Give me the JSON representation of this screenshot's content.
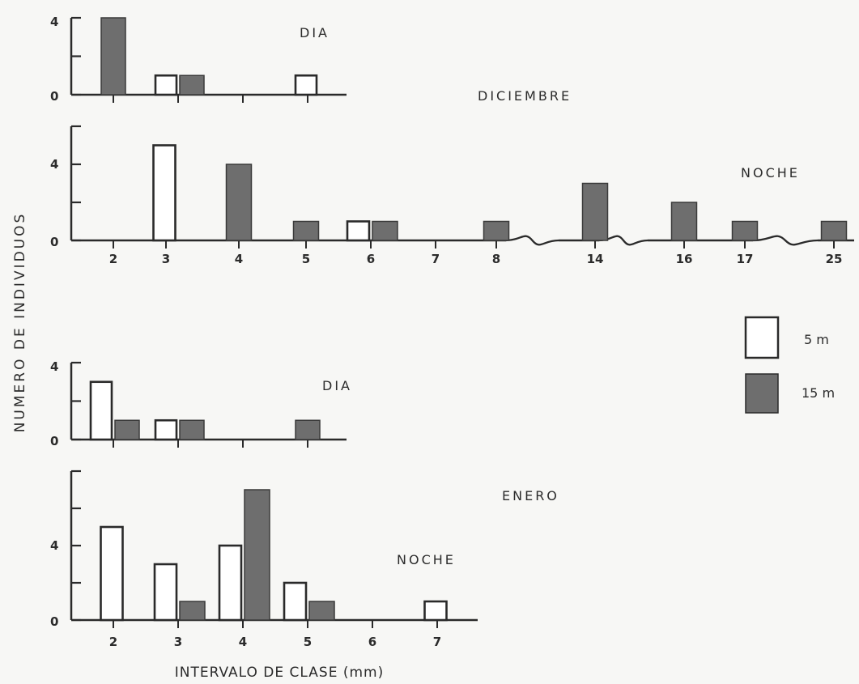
{
  "figure": {
    "ylabel": "NUMERO  DE  INDIVIDUOS",
    "xlabel": "INTERVALO DE CLASE (mm)",
    "month_labels": [
      "DICIEMBRE",
      "ENERO"
    ]
  },
  "legend": [
    {
      "label": "5 m",
      "style": "open",
      "color": "#ffffff"
    },
    {
      "label": "15 m",
      "style": "filled",
      "color": "#6e6e6e"
    }
  ],
  "chart_data": [
    {
      "type": "bar",
      "month": "DICIEMBRE",
      "title": "DIA",
      "categories": [
        "2",
        "3",
        "4",
        "5"
      ],
      "show_tick_labels": false,
      "ylim": [
        0,
        4
      ],
      "yticks": [
        "0",
        "",
        "4"
      ],
      "series": [
        {
          "name": "5 m",
          "values": [
            0,
            1,
            0,
            1
          ]
        },
        {
          "name": "15 m",
          "values": [
            4,
            1,
            0,
            0
          ]
        }
      ]
    },
    {
      "type": "bar",
      "month": "DICIEMBRE",
      "title": "NOCHE",
      "categories": [
        "2",
        "3",
        "4",
        "5",
        "6",
        "7",
        "8",
        "14",
        "16",
        "17",
        "25"
      ],
      "axis_breaks": [
        "8-14",
        "14-16",
        "17-25"
      ],
      "ylim": [
        0,
        6
      ],
      "yticks": [
        "0",
        "",
        "4",
        ""
      ],
      "series": [
        {
          "name": "5 m",
          "values": [
            0,
            5,
            0,
            0,
            1,
            0,
            0,
            0,
            0,
            0,
            0
          ]
        },
        {
          "name": "15 m",
          "values": [
            0,
            0,
            4,
            1,
            1,
            0,
            1,
            3,
            2,
            1,
            1
          ]
        }
      ]
    },
    {
      "type": "bar",
      "month": "ENERO",
      "title": "DIA",
      "categories": [
        "2",
        "3",
        "4",
        "5"
      ],
      "show_tick_labels": false,
      "ylim": [
        0,
        4
      ],
      "yticks": [
        "0",
        "",
        "4"
      ],
      "series": [
        {
          "name": "5 m",
          "values": [
            3,
            1,
            0,
            0
          ]
        },
        {
          "name": "15 m",
          "values": [
            1,
            1,
            0,
            1
          ]
        }
      ]
    },
    {
      "type": "bar",
      "month": "ENERO",
      "title": "NOCHE",
      "categories": [
        "2",
        "3",
        "4",
        "5",
        "6",
        "7"
      ],
      "ylim": [
        0,
        8
      ],
      "yticks": [
        "0",
        "",
        "4",
        "",
        ""
      ],
      "series": [
        {
          "name": "5 m",
          "values": [
            5,
            3,
            4,
            2,
            0,
            1
          ]
        },
        {
          "name": "15 m",
          "values": [
            0,
            1,
            7,
            1,
            0,
            0
          ]
        }
      ]
    }
  ]
}
